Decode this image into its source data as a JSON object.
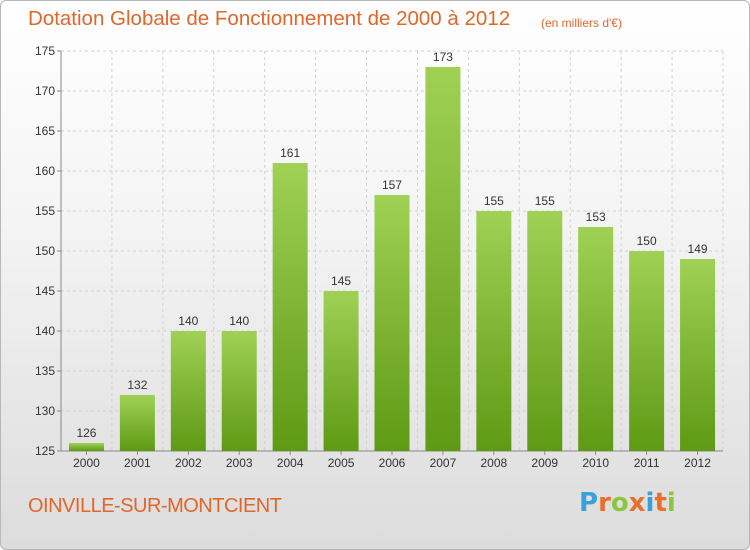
{
  "header": {
    "title": "Dotation Globale de Fonctionnement de 2000 à 2012",
    "unit_note": "(en milliers d'€)"
  },
  "footer": {
    "commune": "OINVILLE-SUR-MONTCIENT",
    "logo_text": "Proxiti",
    "logo_letters": [
      "P",
      "r",
      "o",
      "x",
      "i",
      "t",
      "i"
    ],
    "logo_colors": [
      "#3aa0d8",
      "#e8702a",
      "#8cc63e",
      "#e8702a",
      "#3aa0d8",
      "#e8702a",
      "#8cc63e"
    ]
  },
  "colors": {
    "accent": "#e0662a",
    "bar_top": "#9fd155",
    "bar_bottom": "#5e9a14"
  },
  "chart_data": {
    "type": "bar",
    "title": "Dotation Globale de Fonctionnement de 2000 à 2012",
    "subtitle": "(en milliers d'€)",
    "categories": [
      "2000",
      "2001",
      "2002",
      "2003",
      "2004",
      "2005",
      "2006",
      "2007",
      "2008",
      "2009",
      "2010",
      "2011",
      "2012"
    ],
    "values": [
      126,
      132,
      140,
      140,
      161,
      145,
      157,
      173,
      155,
      155,
      153,
      150,
      149
    ],
    "ylim": [
      125,
      175
    ],
    "yticks": [
      125,
      130,
      135,
      140,
      145,
      150,
      155,
      160,
      165,
      170,
      175
    ],
    "grid": true
  }
}
